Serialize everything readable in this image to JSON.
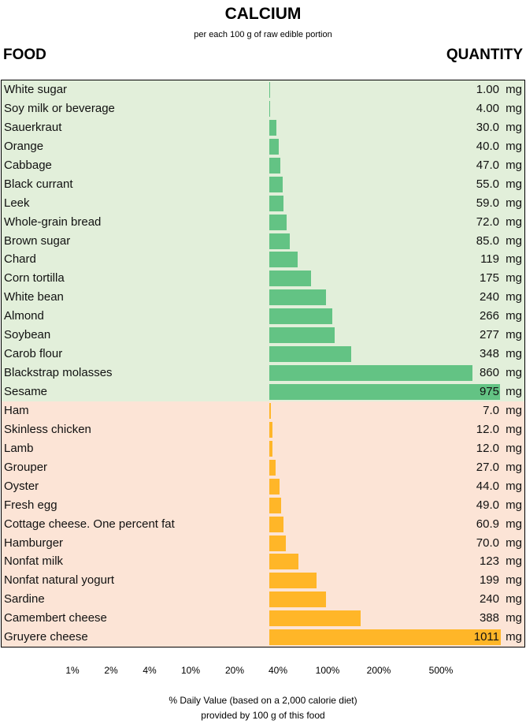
{
  "chart_data": {
    "type": "bar",
    "orientation": "horizontal",
    "title": "CALCIUM",
    "subtitle": "per each 100 g of raw edible portion",
    "column_headers": {
      "food": "FOOD",
      "quantity": "QUANTITY"
    },
    "unit": "mg",
    "groups": [
      {
        "color": "#63c384",
        "background": "#e2efda",
        "items": [
          {
            "food": "White sugar",
            "value": 1.0,
            "label": "1.00"
          },
          {
            "food": "Soy milk or beverage",
            "value": 4.0,
            "label": "4.00"
          },
          {
            "food": "Sauerkraut",
            "value": 30.0,
            "label": "30.0"
          },
          {
            "food": "Orange",
            "value": 40.0,
            "label": "40.0"
          },
          {
            "food": "Cabbage",
            "value": 47.0,
            "label": "47.0"
          },
          {
            "food": "Black currant",
            "value": 55.0,
            "label": "55.0"
          },
          {
            "food": "Leek",
            "value": 59.0,
            "label": "59.0"
          },
          {
            "food": "Whole-grain bread",
            "value": 72.0,
            "label": "72.0"
          },
          {
            "food": "Brown sugar",
            "value": 85.0,
            "label": "85.0"
          },
          {
            "food": "Chard",
            "value": 119,
            "label": "119"
          },
          {
            "food": "Corn tortilla",
            "value": 175,
            "label": "175"
          },
          {
            "food": "White bean",
            "value": 240,
            "label": "240"
          },
          {
            "food": "Almond",
            "value": 266,
            "label": "266"
          },
          {
            "food": "Soybean",
            "value": 277,
            "label": "277"
          },
          {
            "food": "Carob flour",
            "value": 348,
            "label": "348"
          },
          {
            "food": "Blackstrap molasses",
            "value": 860,
            "label": "860"
          },
          {
            "food": "Sesame",
            "value": 975,
            "label": "975"
          }
        ]
      },
      {
        "color": "#ffb628",
        "background": "#fce4d6",
        "items": [
          {
            "food": "Ham",
            "value": 7.0,
            "label": "7.0"
          },
          {
            "food": "Skinless chicken",
            "value": 12.0,
            "label": "12.0"
          },
          {
            "food": "Lamb",
            "value": 12.0,
            "label": "12.0"
          },
          {
            "food": "Grouper",
            "value": 27.0,
            "label": "27.0"
          },
          {
            "food": "Oyster",
            "value": 44.0,
            "label": "44.0"
          },
          {
            "food": "Fresh egg",
            "value": 49.0,
            "label": "49.0"
          },
          {
            "food": "Cottage cheese. One percent fat",
            "value": 60.9,
            "label": "60.9"
          },
          {
            "food": "Hamburger",
            "value": 70.0,
            "label": "70.0"
          },
          {
            "food": "Nonfat milk",
            "value": 123,
            "label": "123"
          },
          {
            "food": "Nonfat natural yogurt",
            "value": 199,
            "label": "199"
          },
          {
            "food": "Sardine",
            "value": 240,
            "label": "240"
          },
          {
            "food": "Camembert cheese",
            "value": 388,
            "label": "388"
          },
          {
            "food": "Gruyere cheese",
            "value": 1011,
            "label": "1011"
          }
        ]
      }
    ],
    "x_ticks": [
      "1%",
      "2%",
      "4%",
      "10%",
      "20%",
      "40%",
      "100%",
      "200%",
      "500%"
    ],
    "xlabel": [
      "% Daily Value (based on a 2,000 calorie diet)",
      "provided by 100 g of this food"
    ]
  }
}
